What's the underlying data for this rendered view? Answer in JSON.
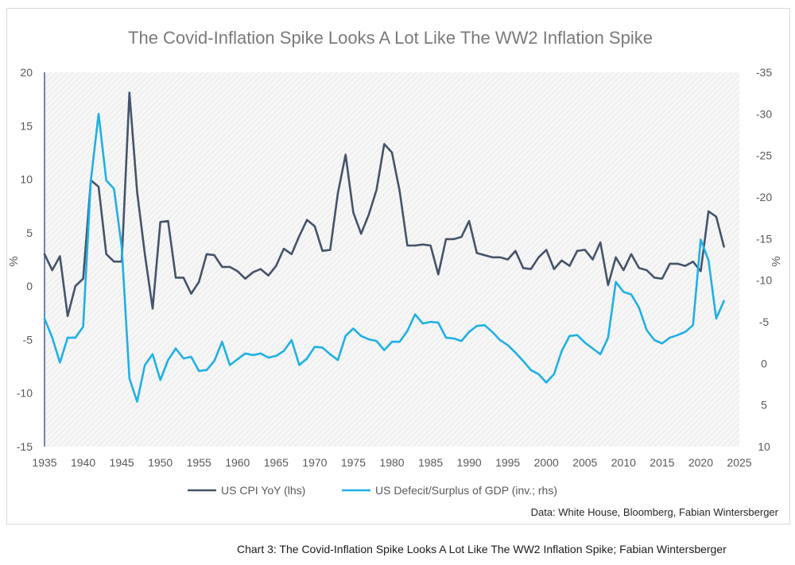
{
  "chart_data": {
    "type": "line",
    "title": "The Covid-Inflation Spike Looks A Lot Like The WW2 Inflation Spike",
    "ylabel_left": "%",
    "ylabel_right": "%",
    "xlim": [
      1935,
      2025
    ],
    "ylim_left": [
      -15,
      20
    ],
    "ylim_right_inverted": [
      -35,
      10
    ],
    "x_ticks": [
      "1935",
      "1940",
      "1945",
      "1950",
      "1955",
      "1960",
      "1965",
      "1970",
      "1975",
      "1980",
      "1985",
      "1990",
      "1995",
      "2000",
      "2005",
      "2010",
      "2015",
      "2020",
      "2025"
    ],
    "y_ticks_left": [
      "20",
      "15",
      "10",
      "5",
      "0",
      "-5",
      "-10",
      "-15"
    ],
    "y_ticks_right": [
      "-35",
      "-30",
      "-25",
      "-20",
      "-15",
      "-10",
      "-5",
      "0",
      "5",
      "10"
    ],
    "series": [
      {
        "name": "US CPI YoY (lhs)",
        "axis": "left",
        "color": "#44546a",
        "x": [
          1935,
          1936,
          1937,
          1938,
          1939,
          1940,
          1941,
          1942,
          1943,
          1944,
          1945,
          1946,
          1947,
          1948,
          1949,
          1950,
          1951,
          1952,
          1953,
          1954,
          1955,
          1956,
          1957,
          1958,
          1959,
          1960,
          1961,
          1962,
          1963,
          1964,
          1965,
          1966,
          1967,
          1968,
          1969,
          1970,
          1971,
          1972,
          1973,
          1974,
          1975,
          1976,
          1977,
          1978,
          1979,
          1980,
          1981,
          1982,
          1983,
          1984,
          1985,
          1986,
          1987,
          1988,
          1989,
          1990,
          1991,
          1992,
          1993,
          1994,
          1995,
          1996,
          1997,
          1998,
          1999,
          2000,
          2001,
          2002,
          2003,
          2004,
          2005,
          2006,
          2007,
          2008,
          2009,
          2010,
          2011,
          2012,
          2013,
          2014,
          2015,
          2016,
          2017,
          2018,
          2019,
          2020,
          2021,
          2022,
          2023
        ],
        "values": [
          3.0,
          1.5,
          2.8,
          -2.8,
          0.0,
          0.7,
          9.9,
          9.3,
          3.0,
          2.3,
          2.3,
          18.1,
          8.8,
          3.0,
          -2.1,
          6.0,
          6.1,
          0.8,
          0.8,
          -0.7,
          0.4,
          3.0,
          2.9,
          1.8,
          1.8,
          1.4,
          0.7,
          1.3,
          1.6,
          1.0,
          1.9,
          3.5,
          3.0,
          4.7,
          6.2,
          5.6,
          3.3,
          3.4,
          8.7,
          12.3,
          6.9,
          4.9,
          6.7,
          9.0,
          13.3,
          12.5,
          8.9,
          3.8,
          3.8,
          3.9,
          3.8,
          1.1,
          4.4,
          4.4,
          4.6,
          6.1,
          3.1,
          2.9,
          2.7,
          2.7,
          2.5,
          3.3,
          1.7,
          1.6,
          2.7,
          3.4,
          1.6,
          2.4,
          1.9,
          3.3,
          3.4,
          2.5,
          4.1,
          0.1,
          2.7,
          1.5,
          3.0,
          1.7,
          1.5,
          0.8,
          0.7,
          2.1,
          2.1,
          1.9,
          2.3,
          1.4,
          7.0,
          6.5,
          3.7
        ]
      },
      {
        "name": "US Defecit/Surplus of GDP (inv.; rhs)",
        "axis": "right",
        "color": "#1fb0e6",
        "x": [
          1935,
          1936,
          1937,
          1938,
          1939,
          1940,
          1941,
          1942,
          1943,
          1944,
          1945,
          1946,
          1947,
          1948,
          1949,
          1950,
          1951,
          1952,
          1953,
          1954,
          1955,
          1956,
          1957,
          1958,
          1959,
          1960,
          1961,
          1962,
          1963,
          1964,
          1965,
          1966,
          1967,
          1968,
          1969,
          1970,
          1971,
          1972,
          1973,
          1974,
          1975,
          1976,
          1977,
          1978,
          1979,
          1980,
          1981,
          1982,
          1983,
          1984,
          1985,
          1986,
          1987,
          1988,
          1989,
          1990,
          1991,
          1992,
          1993,
          1994,
          1995,
          1996,
          1997,
          1998,
          1999,
          2000,
          2001,
          2002,
          2003,
          2004,
          2005,
          2006,
          2007,
          2008,
          2009,
          2010,
          2011,
          2012,
          2013,
          2014,
          2015,
          2016,
          2017,
          2018,
          2019,
          2020,
          2021,
          2022,
          2023
        ],
        "values": [
          -5.4,
          -3.1,
          -0.1,
          -3.1,
          -3.1,
          -4.4,
          -22.0,
          -30.0,
          -22.0,
          -21.0,
          -14.0,
          1.8,
          4.6,
          0.2,
          -1.1,
          2.0,
          -0.4,
          -1.8,
          -0.6,
          -0.8,
          0.9,
          0.8,
          -0.3,
          -2.6,
          0.2,
          -0.5,
          -1.2,
          -1.0,
          -1.2,
          -0.7,
          -0.9,
          -1.5,
          -2.8,
          0.2,
          -0.6,
          -2.0,
          -1.9,
          -1.1,
          -0.4,
          -3.3,
          -4.2,
          -3.3,
          -2.9,
          -2.7,
          -1.6,
          -2.6,
          -2.6,
          -3.9,
          -5.9,
          -4.8,
          -5.0,
          -4.9,
          -3.1,
          -3.0,
          -2.7,
          -3.8,
          -4.5,
          -4.6,
          -3.8,
          -2.8,
          -2.2,
          -1.3,
          -0.3,
          0.8,
          1.3,
          2.3,
          1.3,
          -1.5,
          -3.3,
          -3.4,
          -2.5,
          -1.8,
          -1.1,
          -3.1,
          -9.8,
          -8.6,
          -8.3,
          -6.7,
          -4.0,
          -2.8,
          -2.4,
          -3.1,
          -3.4,
          -3.8,
          -4.6,
          -14.9,
          -12.4,
          -5.4,
          -7.5
        ]
      }
    ],
    "grid": false,
    "legend_position": "bottom-center",
    "source": "Data: White House, Bloomberg, Fabian Wintersberger"
  },
  "caption": "Chart 3: The Covid-Inflation Spike Looks A Lot Like The WW2 Inflation Spike; Fabian Wintersberger"
}
